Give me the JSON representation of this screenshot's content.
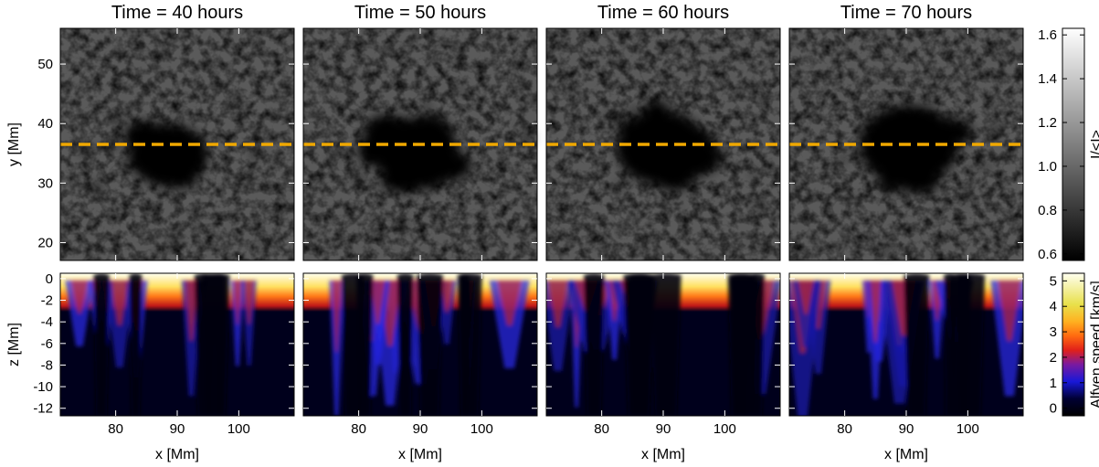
{
  "panels": [
    {
      "title": "Time =  40 hours",
      "time_hours": 40
    },
    {
      "title": "Time =  50 hours",
      "time_hours": 50
    },
    {
      "title": "Time =  60 hours",
      "time_hours": 60
    },
    {
      "title": "Time =  70 hours",
      "time_hours": 70
    }
  ],
  "top_row": {
    "ylabel": "y [Mm]",
    "yticks": [
      "20",
      "30",
      "40",
      "50"
    ],
    "ytick_values": [
      20,
      30,
      40,
      50
    ],
    "yrange": [
      17,
      56
    ],
    "dashed_line_y": 36.5,
    "dashed_line_color": "#f0a800"
  },
  "bottom_row": {
    "ylabel": "z [Mm]",
    "yticks": [
      "0",
      "-2",
      "-4",
      "-6",
      "-8",
      "-10",
      "-12"
    ],
    "ytick_values": [
      0,
      -2,
      -4,
      -6,
      -8,
      -10,
      -12
    ],
    "yrange": [
      -12.7,
      0.5
    ]
  },
  "xaxis": {
    "label": "x [Mm]",
    "ticks": [
      "80",
      "90",
      "100"
    ],
    "tick_values": [
      80,
      90,
      100
    ],
    "range": [
      71,
      109
    ]
  },
  "colorbar_top": {
    "label": "I/<I>",
    "ticks": [
      "0.6",
      "0.8",
      "1.0",
      "1.2",
      "1.4",
      "1.6"
    ],
    "tick_values": [
      0.6,
      0.8,
      1.0,
      1.2,
      1.4,
      1.6
    ],
    "range": [
      0.57,
      1.63
    ],
    "colormap": "grayscale"
  },
  "colorbar_bottom": {
    "label": "Alfven speed [km/s]",
    "ticks": [
      "0",
      "1",
      "2",
      "3",
      "4",
      "5"
    ],
    "tick_values": [
      0,
      1,
      2,
      3,
      4,
      5
    ],
    "range": [
      -0.3,
      5.3
    ],
    "colormap": "black-blue-red-yellow-white"
  }
}
